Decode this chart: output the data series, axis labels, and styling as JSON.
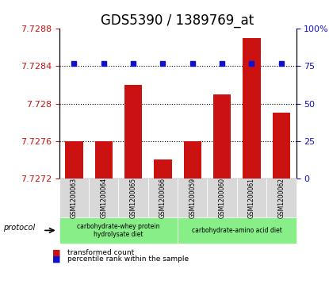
{
  "title": "GDS5390 / 1389769_at",
  "samples": [
    "GSM1200063",
    "GSM1200064",
    "GSM1200065",
    "GSM1200066",
    "GSM1200059",
    "GSM1200060",
    "GSM1200061",
    "GSM1200062"
  ],
  "red_values": [
    7.7276,
    7.7276,
    7.7282,
    7.7274,
    7.7276,
    7.7281,
    7.7287,
    7.7279
  ],
  "blue_values": [
    77,
    77,
    77,
    77,
    77,
    77,
    77,
    77
  ],
  "ylim_left": [
    7.7272,
    7.7288
  ],
  "ylim_right": [
    0,
    100
  ],
  "yticks_left": [
    7.7272,
    7.7276,
    7.728,
    7.7284,
    7.7288
  ],
  "ytick_labels_left": [
    "7.7272",
    "7.7276",
    "7.728",
    "7.7284",
    "7.7288"
  ],
  "yticks_right": [
    0,
    25,
    50,
    75,
    100
  ],
  "ytick_labels_right": [
    "0",
    "25",
    "50",
    "75",
    "100%"
  ],
  "hlines": [
    7.7276,
    7.728,
    7.7284
  ],
  "group1_indices": [
    0,
    1,
    2,
    3
  ],
  "group2_indices": [
    4,
    5,
    6,
    7
  ],
  "group1_label": "carbohydrate-whey protein\nhydrolysate diet",
  "group2_label": "carbohydrate-amino acid diet",
  "protocol_label": "protocol",
  "legend_red": "transformed count",
  "legend_blue": "percentile rank within the sample",
  "bar_color": "#cc1111",
  "dot_color": "#1111cc",
  "group_label_bg": "#88ee88",
  "bar_bottom": 7.7272,
  "bar_width": 0.6,
  "title_fontsize": 12,
  "tick_fontsize": 8
}
